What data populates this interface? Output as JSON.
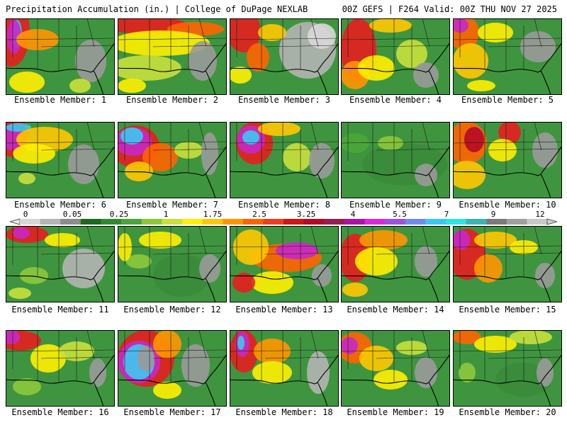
{
  "header": {
    "left": "Precipitation Accumulation (in.) | College of DuPage NEXLAB",
    "right": "00Z GEFS | F264 Valid: 00Z THU NOV 27 2025"
  },
  "member_prefix": "Ensemble Member: ",
  "members": [
    1,
    2,
    3,
    4,
    5,
    6,
    7,
    8,
    9,
    10,
    11,
    12,
    13,
    14,
    15,
    16,
    17,
    18,
    19,
    20
  ],
  "colorbar": {
    "labels": [
      "0",
      "0.05",
      "0.25",
      "1",
      "1.75",
      "2.5",
      "3.25",
      "4",
      "5.5",
      "7",
      "9",
      "12"
    ],
    "colors": [
      "#d8d8d8",
      "#b4b4b4",
      "#8c8c8c",
      "#1c6b1c",
      "#2e8b2e",
      "#4aa63a",
      "#8cc83c",
      "#c8e03c",
      "#fff000",
      "#ffc800",
      "#ff9600",
      "#ff6400",
      "#f03c1e",
      "#d21414",
      "#b40a28",
      "#961e50",
      "#aa14aa",
      "#dc28dc",
      "#a050dc",
      "#6e8cf0",
      "#3cc8f0",
      "#28e6e6",
      "#3cb4b4",
      "#7a7a7a",
      "#a0a0a0",
      "#c8c8c8"
    ]
  },
  "panels": [
    {
      "member": 1,
      "blobs": [
        [
          8,
          20,
          26,
          48,
          "#e61e1e"
        ],
        [
          16,
          22,
          7,
          20,
          "#3cc8f0"
        ],
        [
          12,
          26,
          10,
          24,
          "#c828c8"
        ],
        [
          45,
          30,
          30,
          15,
          "#ff9600"
        ],
        [
          30,
          90,
          25,
          15,
          "#fff000"
        ],
        [
          120,
          60,
          22,
          30,
          "#9a9a9a"
        ],
        [
          105,
          95,
          15,
          10,
          "#c8e03c"
        ]
      ]
    },
    {
      "member": 2,
      "blobs": [
        [
          40,
          10,
          60,
          12,
          "#e61e1e"
        ],
        [
          110,
          15,
          40,
          10,
          "#ff6400"
        ],
        [
          60,
          35,
          70,
          18,
          "#fff000"
        ],
        [
          40,
          70,
          50,
          18,
          "#c8e03c"
        ],
        [
          120,
          60,
          20,
          28,
          "#9a9a9a"
        ],
        [
          20,
          95,
          20,
          10,
          "#fff000"
        ]
      ]
    },
    {
      "member": 3,
      "blobs": [
        [
          20,
          18,
          24,
          30,
          "#e61e1e"
        ],
        [
          40,
          55,
          16,
          20,
          "#ff6400"
        ],
        [
          110,
          45,
          40,
          40,
          "#b4b4b4"
        ],
        [
          130,
          25,
          20,
          18,
          "#d8d8d8"
        ],
        [
          15,
          80,
          16,
          12,
          "#fff000"
        ],
        [
          60,
          20,
          20,
          12,
          "#ffc800"
        ]
      ]
    },
    {
      "member": 4,
      "blobs": [
        [
          25,
          45,
          25,
          45,
          "#e61e1e"
        ],
        [
          20,
          80,
          20,
          20,
          "#ff9600"
        ],
        [
          50,
          70,
          26,
          18,
          "#fff000"
        ],
        [
          70,
          10,
          30,
          10,
          "#ffc800"
        ],
        [
          100,
          50,
          22,
          20,
          "#c8e03c"
        ],
        [
          120,
          80,
          18,
          18,
          "#9a9a9a"
        ]
      ]
    },
    {
      "member": 5,
      "blobs": [
        [
          15,
          20,
          22,
          25,
          "#ff6400"
        ],
        [
          10,
          10,
          12,
          10,
          "#c828c8"
        ],
        [
          25,
          60,
          25,
          25,
          "#ffc800"
        ],
        [
          60,
          20,
          25,
          14,
          "#fff000"
        ],
        [
          120,
          40,
          25,
          22,
          "#9a9a9a"
        ],
        [
          40,
          95,
          20,
          8,
          "#fff000"
        ]
      ]
    },
    {
      "member": 6,
      "blobs": [
        [
          10,
          20,
          22,
          30,
          "#e61e1e"
        ],
        [
          8,
          22,
          14,
          18,
          "#c828c8"
        ],
        [
          18,
          8,
          18,
          6,
          "#3cc8f0"
        ],
        [
          55,
          25,
          40,
          18,
          "#ffc800"
        ],
        [
          40,
          45,
          30,
          14,
          "#fff000"
        ],
        [
          110,
          60,
          22,
          28,
          "#9a9a9a"
        ],
        [
          30,
          80,
          12,
          8,
          "#c8e03c"
        ]
      ]
    },
    {
      "member": 7,
      "blobs": [
        [
          25,
          35,
          34,
          30,
          "#e61e1e"
        ],
        [
          22,
          28,
          26,
          20,
          "#c828c8"
        ],
        [
          20,
          20,
          16,
          12,
          "#3cc8f0"
        ],
        [
          60,
          50,
          25,
          20,
          "#ff6400"
        ],
        [
          30,
          70,
          20,
          14,
          "#ffc800"
        ],
        [
          100,
          40,
          20,
          12,
          "#c8e03c"
        ],
        [
          130,
          45,
          12,
          30,
          "#9a9a9a"
        ]
      ]
    },
    {
      "member": 8,
      "blobs": [
        [
          35,
          30,
          26,
          30,
          "#e61e1e"
        ],
        [
          30,
          25,
          20,
          20,
          "#c828c8"
        ],
        [
          30,
          22,
          12,
          10,
          "#3cc8f0"
        ],
        [
          70,
          10,
          30,
          10,
          "#ffc800"
        ],
        [
          95,
          50,
          20,
          20,
          "#c8e03c"
        ],
        [
          130,
          55,
          18,
          25,
          "#9a9a9a"
        ]
      ]
    },
    {
      "member": 9,
      "blobs": [
        [
          90,
          60,
          60,
          30,
          "#3a8a3a"
        ],
        [
          120,
          75,
          16,
          16,
          "#9a9a9a"
        ],
        [
          20,
          30,
          20,
          14,
          "#4aa63a"
        ],
        [
          70,
          30,
          18,
          10,
          "#8cc83c"
        ]
      ]
    },
    {
      "member": 10,
      "blobs": [
        [
          20,
          30,
          28,
          30,
          "#ff6400"
        ],
        [
          30,
          25,
          14,
          18,
          "#b40a28"
        ],
        [
          80,
          15,
          16,
          16,
          "#e61e1e"
        ],
        [
          20,
          75,
          26,
          20,
          "#ffc800"
        ],
        [
          70,
          40,
          20,
          16,
          "#fff000"
        ],
        [
          130,
          40,
          18,
          25,
          "#9a9a9a"
        ]
      ]
    },
    {
      "member": 11,
      "blobs": [
        [
          30,
          12,
          30,
          12,
          "#e61e1e"
        ],
        [
          22,
          10,
          12,
          8,
          "#c828c8"
        ],
        [
          80,
          20,
          25,
          10,
          "#fff000"
        ],
        [
          110,
          60,
          30,
          28,
          "#b4b4b4"
        ],
        [
          40,
          70,
          20,
          12,
          "#8cc83c"
        ],
        [
          20,
          95,
          16,
          8,
          "#c8e03c"
        ]
      ]
    },
    {
      "member": 12,
      "blobs": [
        [
          60,
          20,
          30,
          12,
          "#fff000"
        ],
        [
          90,
          70,
          40,
          30,
          "#3a8a3a"
        ],
        [
          130,
          60,
          15,
          20,
          "#9a9a9a"
        ],
        [
          30,
          50,
          18,
          10,
          "#8cc83c"
        ],
        [
          10,
          30,
          10,
          20,
          "#fff000"
        ]
      ]
    },
    {
      "member": 13,
      "blobs": [
        [
          80,
          45,
          50,
          20,
          "#ff6400"
        ],
        [
          95,
          35,
          30,
          12,
          "#c828c8"
        ],
        [
          30,
          30,
          25,
          25,
          "#ffc800"
        ],
        [
          60,
          80,
          30,
          16,
          "#fff000"
        ],
        [
          20,
          80,
          16,
          14,
          "#e61e1e"
        ],
        [
          130,
          70,
          14,
          16,
          "#9a9a9a"
        ]
      ]
    },
    {
      "member": 14,
      "blobs": [
        [
          20,
          45,
          22,
          34,
          "#e61e1e"
        ],
        [
          60,
          20,
          34,
          14,
          "#ff9600"
        ],
        [
          50,
          50,
          30,
          20,
          "#fff000"
        ],
        [
          120,
          50,
          16,
          22,
          "#9a9a9a"
        ],
        [
          20,
          90,
          18,
          10,
          "#ffc800"
        ]
      ]
    },
    {
      "member": 15,
      "blobs": [
        [
          20,
          40,
          26,
          36,
          "#e61e1e"
        ],
        [
          12,
          20,
          12,
          14,
          "#c828c8"
        ],
        [
          60,
          20,
          30,
          12,
          "#ffc800"
        ],
        [
          50,
          60,
          20,
          20,
          "#ff9600"
        ],
        [
          130,
          70,
          14,
          18,
          "#9a9a9a"
        ],
        [
          100,
          30,
          20,
          10,
          "#fff000"
        ]
      ]
    },
    {
      "member": 16,
      "blobs": [
        [
          20,
          15,
          30,
          14,
          "#e61e1e"
        ],
        [
          8,
          10,
          12,
          10,
          "#c828c8"
        ],
        [
          60,
          40,
          25,
          20,
          "#fff000"
        ],
        [
          100,
          30,
          25,
          14,
          "#c8e03c"
        ],
        [
          30,
          80,
          20,
          12,
          "#8cc83c"
        ],
        [
          130,
          60,
          12,
          20,
          "#9a9a9a"
        ]
      ]
    },
    {
      "member": 17,
      "blobs": [
        [
          40,
          40,
          40,
          40,
          "#e61e1e"
        ],
        [
          30,
          45,
          30,
          30,
          "#c828c8"
        ],
        [
          30,
          45,
          22,
          25,
          "#3cc8f0"
        ],
        [
          40,
          40,
          12,
          18,
          "#9a9a9a"
        ],
        [
          70,
          20,
          20,
          20,
          "#ff9600"
        ],
        [
          110,
          50,
          20,
          30,
          "#9a9a9a"
        ],
        [
          70,
          85,
          20,
          12,
          "#fff000"
        ]
      ]
    },
    {
      "member": 18,
      "blobs": [
        [
          20,
          30,
          20,
          30,
          "#e61e1e"
        ],
        [
          18,
          20,
          10,
          18,
          "#c828c8"
        ],
        [
          16,
          18,
          5,
          10,
          "#3cc8f0"
        ],
        [
          60,
          30,
          26,
          18,
          "#ff9600"
        ],
        [
          60,
          60,
          28,
          16,
          "#fff000"
        ],
        [
          125,
          60,
          16,
          30,
          "#b4b4b4"
        ]
      ]
    },
    {
      "member": 19,
      "blobs": [
        [
          20,
          25,
          24,
          22,
          "#ff6400"
        ],
        [
          12,
          22,
          12,
          12,
          "#c828c8"
        ],
        [
          50,
          40,
          24,
          18,
          "#ffc800"
        ],
        [
          70,
          70,
          24,
          14,
          "#fff000"
        ],
        [
          120,
          60,
          16,
          22,
          "#9a9a9a"
        ],
        [
          100,
          25,
          22,
          10,
          "#c8e03c"
        ]
      ]
    },
    {
      "member": 20,
      "blobs": [
        [
          20,
          10,
          20,
          10,
          "#ff6400"
        ],
        [
          60,
          20,
          30,
          12,
          "#fff000"
        ],
        [
          110,
          10,
          30,
          10,
          "#c8e03c"
        ],
        [
          100,
          70,
          40,
          24,
          "#3a8a3a"
        ],
        [
          130,
          60,
          12,
          20,
          "#9a9a9a"
        ],
        [
          20,
          60,
          12,
          14,
          "#8cc83c"
        ]
      ]
    }
  ]
}
